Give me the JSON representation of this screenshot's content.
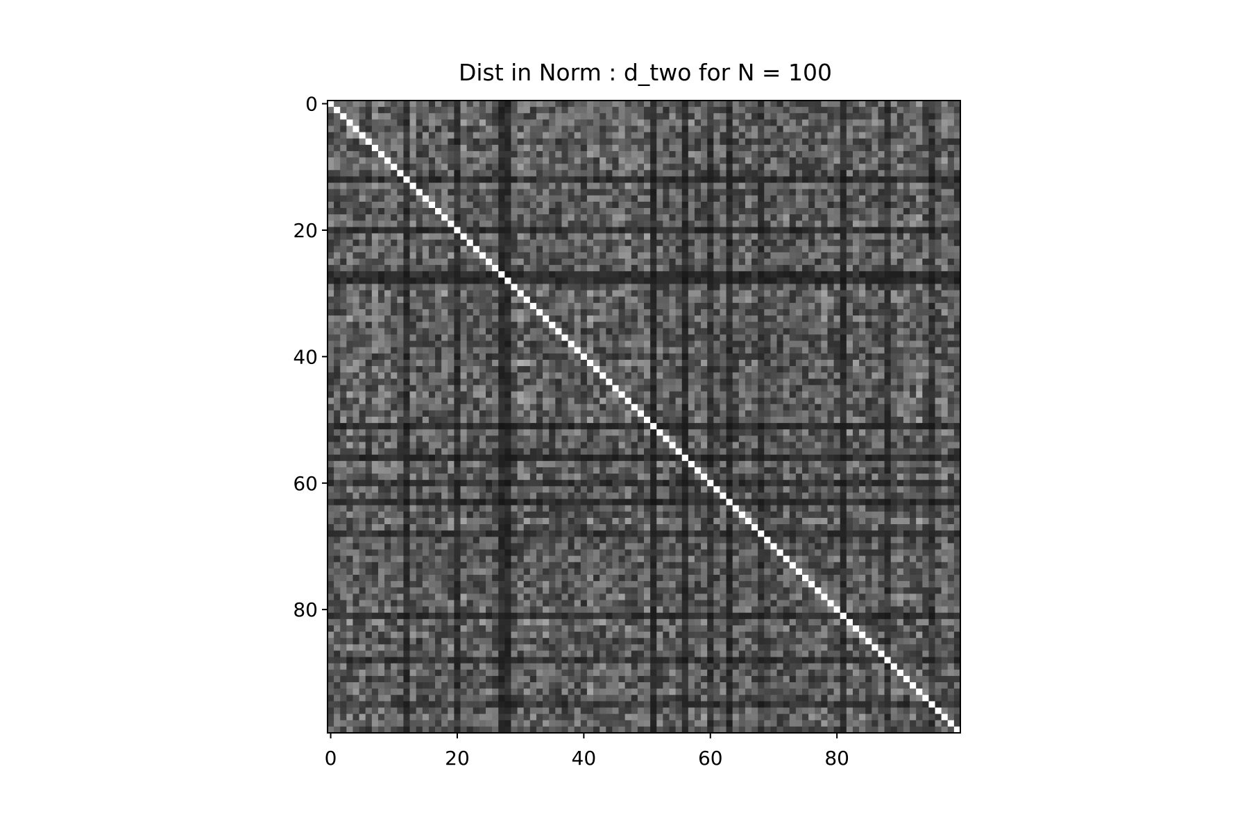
{
  "chart_data": {
    "type": "heatmap",
    "title": "Dist in Norm : d_two for N = 100",
    "n": 100,
    "colormap": "gray",
    "diagonal_value": 0,
    "value_range": [
      0,
      1
    ],
    "x_ticks": [
      0,
      20,
      40,
      60,
      80
    ],
    "y_ticks": [
      0,
      20,
      40,
      60,
      80
    ],
    "xlim": [
      -0.5,
      99.5
    ],
    "ylim": [
      99.5,
      -0.5
    ],
    "grid": false,
    "legend": "none",
    "colors": {
      "background": "#ffffff",
      "axes": "#000000",
      "diagonal": "#ffffff"
    }
  }
}
